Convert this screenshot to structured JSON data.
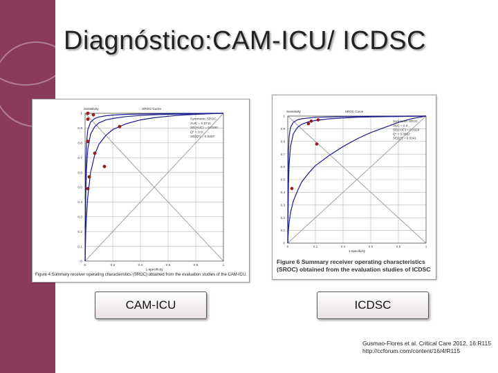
{
  "slide": {
    "title": "Diagnóstico:CAM-ICU/ ICDSC",
    "buttons": {
      "cam_icu": "CAM-ICU",
      "icdsc": "ICDSC"
    },
    "citation": {
      "line1": "Gusmao-Flores et al. Critical Care 2012, 16:R115",
      "line2": "http://ccforum.com/content/16/4/R115"
    },
    "colors": {
      "sidebar": "#8a3a5a",
      "curve": "#1a1a8c",
      "point": "#a01f1f",
      "grid": "#b5b5b5"
    }
  },
  "chart_data": [
    {
      "type": "scatter",
      "title": "SROC Curve",
      "ylabel": "Sensitivity",
      "xlabel": "1-specificity",
      "caption": "Figure 4 Summary receiver operating characteristics (SROC) obtained from the evaluation studies of the CAM-ICU.",
      "legend_lines": [
        "Symmetric SROC",
        "AUC = 0.9711",
        "SE(AUC) = 0.0150",
        "Q* = 0.9...",
        "SE(Q*) = 0.0297"
      ],
      "xlim": [
        0,
        1
      ],
      "ylim": [
        0,
        1
      ],
      "yticks": [
        "0",
        "0.1",
        "0.2",
        "0.3",
        "0.4",
        "0.5",
        "0.6",
        "0.7",
        "0.8",
        "0.9",
        "1"
      ],
      "xticks": [
        "0",
        "0.2",
        "0.4",
        "0.6",
        "0.8",
        "1"
      ],
      "points": [
        [
          0.02,
          1.0
        ],
        [
          0.06,
          0.99
        ],
        [
          0.02,
          0.96
        ],
        [
          0.25,
          0.91
        ],
        [
          0.02,
          0.81
        ],
        [
          0.07,
          0.73
        ],
        [
          0.14,
          0.64
        ],
        [
          0.03,
          0.57
        ],
        [
          0.02,
          0.49
        ]
      ],
      "curves": [
        {
          "x": [
            0,
            0.005,
            0.01,
            0.02,
            0.04,
            0.07,
            0.1,
            0.15,
            0.2,
            0.3,
            0.4,
            0.5,
            0.6,
            0.7,
            0.8,
            0.9,
            1
          ],
          "y": [
            0,
            0.45,
            0.62,
            0.76,
            0.86,
            0.91,
            0.935,
            0.955,
            0.965,
            0.978,
            0.985,
            0.99,
            0.993,
            0.995,
            0.997,
            0.998,
            1
          ]
        },
        {
          "x": [
            0,
            0.005,
            0.01,
            0.02,
            0.04,
            0.07,
            0.1,
            0.15,
            0.2,
            0.3,
            0.4,
            0.5,
            0.6,
            0.7,
            0.8,
            0.9,
            1
          ],
          "y": [
            0,
            0.2,
            0.3,
            0.44,
            0.6,
            0.72,
            0.79,
            0.85,
            0.89,
            0.93,
            0.955,
            0.97,
            0.98,
            0.988,
            0.993,
            0.997,
            1
          ]
        },
        {
          "x": [
            0,
            0.005,
            0.01,
            0.02,
            0.04,
            0.07,
            0.1,
            0.15,
            0.2,
            0.3,
            0.4,
            0.5,
            0.6,
            0.7,
            0.8,
            0.9,
            1
          ],
          "y": [
            0,
            0.65,
            0.8,
            0.89,
            0.94,
            0.965,
            0.975,
            0.983,
            0.988,
            0.993,
            0.995,
            0.997,
            0.998,
            0.999,
            0.999,
            1,
            1
          ]
        }
      ]
    },
    {
      "type": "scatter",
      "title": "SROC Curve",
      "ylabel": "Sensitivity",
      "xlabel": "1-specificity",
      "caption": "Figure 6 Summary receiver operating characteristics (SROC) obtained from the evaluation studies of ICDSC",
      "legend_lines": [
        "Symmetric SROC",
        "AUC = 0.9...",
        "SE(AUC) = 0.0329",
        "Q* = 0.8862",
        "SE(Q*) = 0.0341"
      ],
      "xlim": [
        0,
        1
      ],
      "ylim": [
        0,
        1
      ],
      "yticks": [
        "0",
        "0.1",
        "0.2",
        "0.3",
        "0.4",
        "0.5",
        "0.6",
        "0.7",
        "0.8",
        "0.9",
        "1"
      ],
      "xticks": [
        "0",
        "0.2",
        "0.4",
        "0.6",
        "0.8",
        "1"
      ],
      "points": [
        [
          0.17,
          0.96
        ],
        [
          0.22,
          0.97
        ],
        [
          0.15,
          0.94
        ],
        [
          0.21,
          0.78
        ],
        [
          0.03,
          0.43
        ]
      ],
      "curves": [
        {
          "x": [
            0,
            0.005,
            0.01,
            0.02,
            0.04,
            0.07,
            0.1,
            0.15,
            0.2,
            0.3,
            0.4,
            0.5,
            0.6,
            0.7,
            0.8,
            0.9,
            1
          ],
          "y": [
            0,
            0.45,
            0.62,
            0.76,
            0.86,
            0.91,
            0.935,
            0.955,
            0.965,
            0.978,
            0.985,
            0.99,
            0.993,
            0.995,
            0.997,
            0.998,
            1
          ]
        },
        {
          "x": [
            0,
            0.005,
            0.01,
            0.02,
            0.04,
            0.07,
            0.1,
            0.15,
            0.2,
            0.3,
            0.4,
            0.5,
            0.6,
            0.7,
            0.8,
            0.9,
            1
          ],
          "y": [
            0,
            0.1,
            0.16,
            0.24,
            0.33,
            0.41,
            0.48,
            0.55,
            0.61,
            0.69,
            0.76,
            0.82,
            0.87,
            0.91,
            0.95,
            0.98,
            1
          ]
        },
        {
          "x": [
            0,
            0.005,
            0.01,
            0.02,
            0.04,
            0.07,
            0.1,
            0.15,
            0.2,
            0.3,
            0.4,
            0.5,
            0.6,
            0.7,
            0.8,
            0.9,
            1
          ],
          "y": [
            0,
            0.72,
            0.84,
            0.91,
            0.95,
            0.97,
            0.978,
            0.985,
            0.99,
            0.993,
            0.995,
            0.997,
            0.998,
            0.999,
            0.999,
            1,
            1
          ]
        }
      ]
    }
  ]
}
